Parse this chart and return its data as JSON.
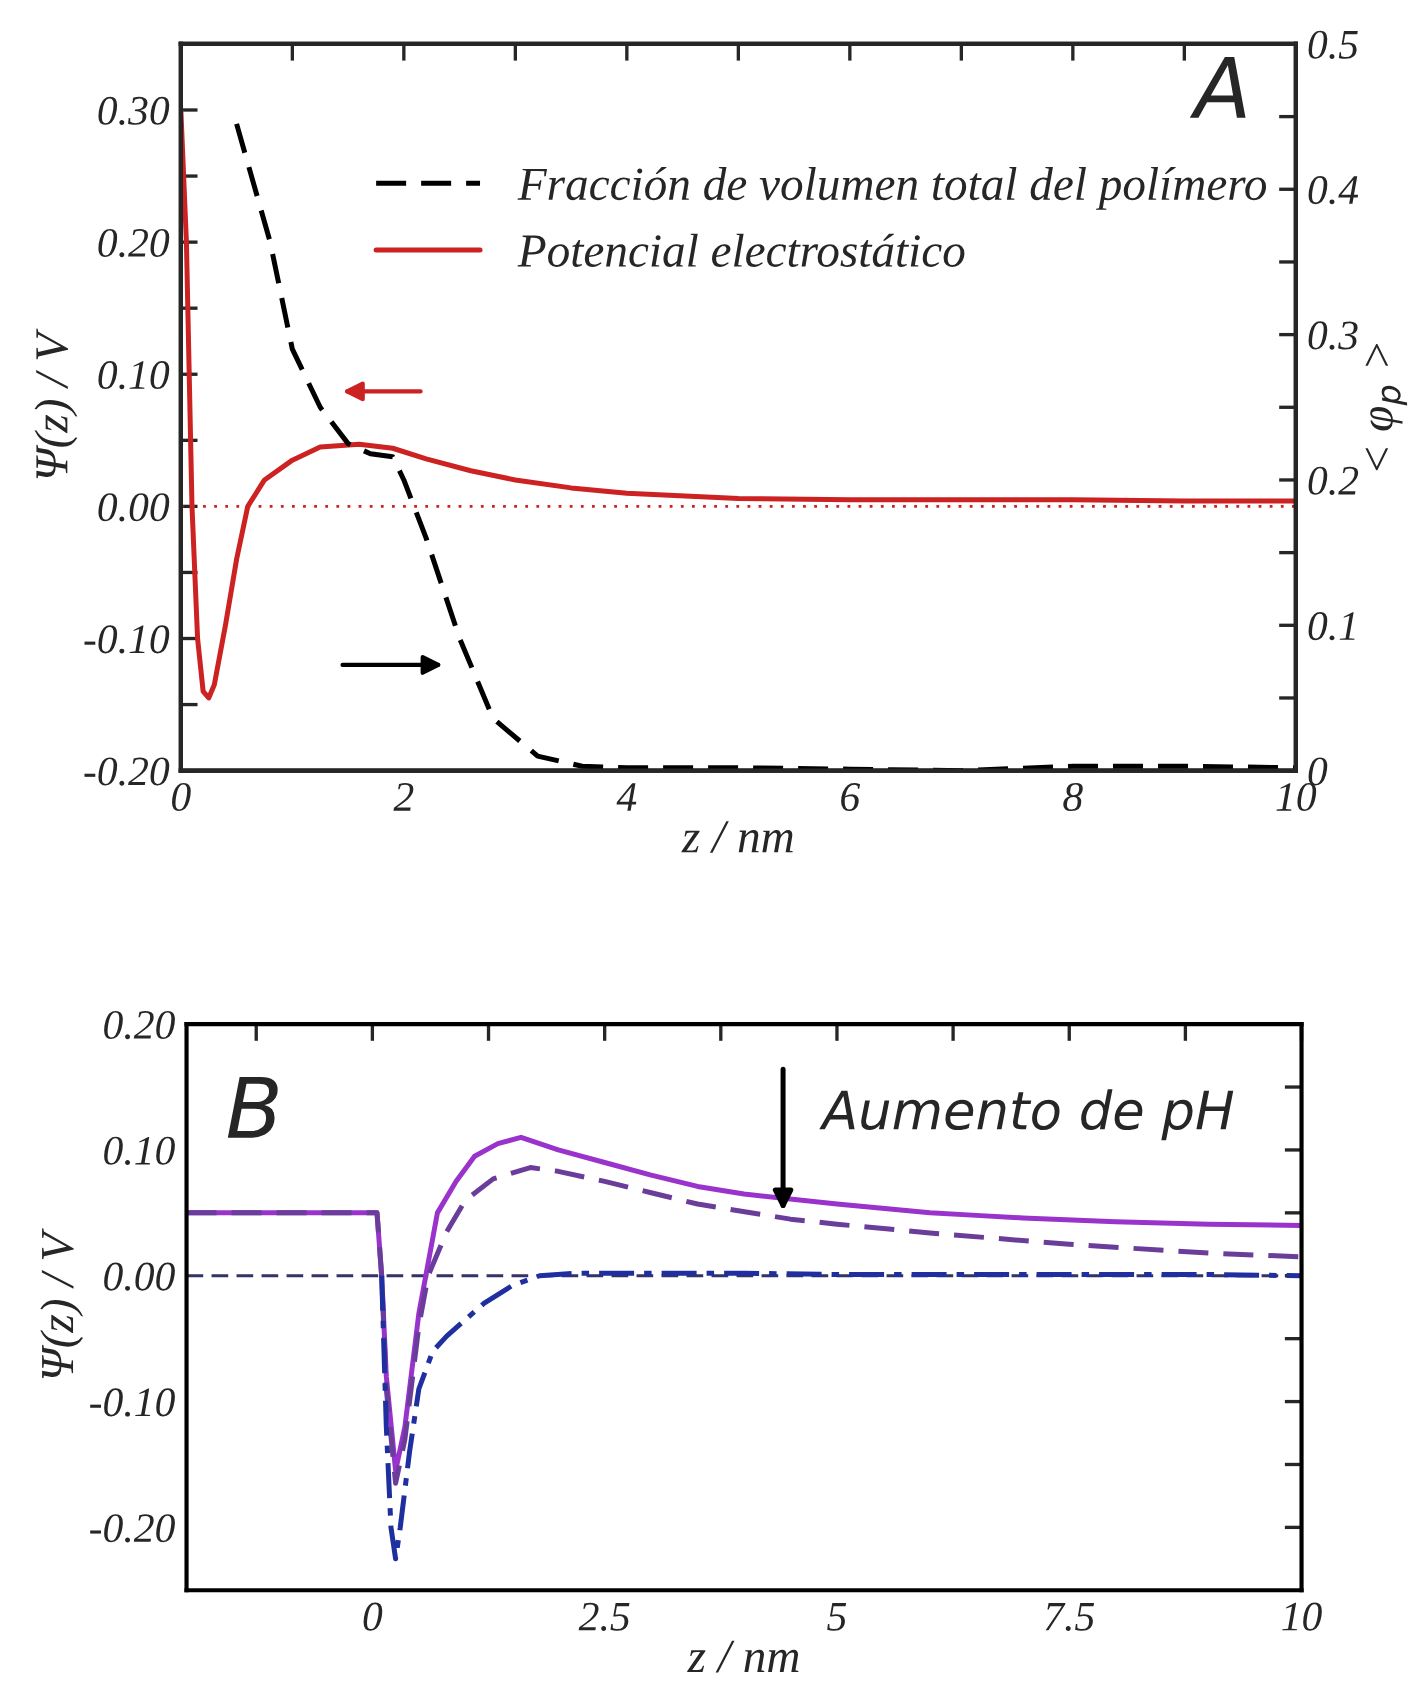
{
  "chart_data": [
    {
      "type": "line",
      "xlabel": "z / nm",
      "ylabel": "Ψ(z) / V",
      "y2label": "< φ$_{p}$ >",
      "xlim": [
        0,
        10
      ],
      "ylim": [
        -0.2,
        0.35
      ],
      "y2lim": [
        0,
        0.5
      ],
      "xticks": [
        0,
        {
          "value": 1,
          "label": null
        },
        2,
        {
          "value": 3,
          "label": null
        },
        4,
        {
          "value": 5,
          "label": null
        },
        6,
        {
          "value": 7,
          "label": null
        },
        8,
        {
          "value": 9,
          "label": null
        },
        10
      ],
      "yticks": [
        {
          "value": -0.2,
          "label": "-0.20"
        },
        {
          "value": -0.15,
          "label": null
        },
        {
          "value": -0.1,
          "label": "-0.10"
        },
        {
          "value": -0.05,
          "label": null
        },
        {
          "value": 0,
          "label": "0.00"
        },
        {
          "value": 0.05,
          "label": null
        },
        {
          "value": 0.1,
          "label": "0.10"
        },
        {
          "value": 0.15,
          "label": null
        },
        {
          "value": 0.2,
          "label": "0.20"
        },
        {
          "value": 0.25,
          "label": null
        },
        {
          "value": 0.3,
          "label": "0.30"
        }
      ],
      "y2ticks": [
        0,
        {
          "value": 0.05,
          "label": null
        },
        0.1,
        {
          "value": 0.15,
          "label": null
        },
        0.2,
        {
          "value": 0.25,
          "label": null
        },
        0.3,
        {
          "value": 0.35,
          "label": null
        },
        0.4,
        {
          "value": 0.45,
          "label": null
        },
        0.5
      ],
      "legend": "top right",
      "grid": false,
      "marker": "none",
      "series": [
        {
          "name": "Fracción de volumen total del polímero",
          "color": "#000000",
          "axis": "y2",
          "line_style": "dashed",
          "x": [
            0.5,
            0.8,
            1.0,
            1.25,
            1.5,
            1.7,
            1.9,
            2.0,
            2.2,
            2.5,
            2.8,
            3.2,
            3.6,
            4,
            5,
            6,
            7,
            8,
            9,
            10
          ],
          "values": [
            0.445,
            0.364,
            0.29,
            0.25,
            0.225,
            0.218,
            0.216,
            0.2,
            0.16,
            0.091,
            0.036,
            0.01,
            0.003,
            0.002,
            0.002,
            0.001,
            0.0,
            0.003,
            0.003,
            0.002
          ]
        },
        {
          "name": "Potencial electrostático",
          "color": "#cc2222",
          "line_style": "solid",
          "x": [
            0,
            0.05,
            0.1,
            0.15,
            0.2,
            0.25,
            0.3,
            0.4,
            0.5,
            0.6,
            0.75,
            1.0,
            1.25,
            1.6,
            1.9,
            2.2,
            2.6,
            3,
            3.5,
            4,
            5,
            6,
            7,
            8,
            9,
            10
          ],
          "values": [
            0.3,
            0.2,
            0.0,
            -0.1,
            -0.14,
            -0.145,
            -0.135,
            -0.09,
            -0.04,
            0.0,
            0.02,
            0.035,
            0.045,
            0.047,
            0.044,
            0.036,
            0.027,
            0.02,
            0.014,
            0.01,
            0.006,
            0.005,
            0.005,
            0.005,
            0.004,
            0.004
          ]
        }
      ],
      "ref_lines": [
        {
          "axis": "y",
          "value": 0,
          "color": "#cc2222",
          "line_style": "dotted"
        }
      ],
      "annotations": [
        "A"
      ]
    },
    {
      "type": "line",
      "xlabel": "z / nm",
      "ylabel": "Ψ(z) / V",
      "xlim": [
        -2,
        10
      ],
      "ylim": [
        -0.25,
        0.2
      ],
      "xticks": [
        {
          "value": -1.25,
          "label": null
        },
        0,
        {
          "value": 1.25,
          "label": null
        },
        2.5,
        {
          "value": 3.75,
          "label": null
        },
        5,
        {
          "value": 6.25,
          "label": null
        },
        7.5,
        {
          "value": 8.75,
          "label": null
        },
        10
      ],
      "yticks": [
        {
          "value": -0.2,
          "label": "-0.20"
        },
        {
          "value": -0.15,
          "label": null
        },
        {
          "value": -0.1,
          "label": "-0.10"
        },
        {
          "value": -0.05,
          "label": null
        },
        {
          "value": 0,
          "label": "0.00"
        },
        {
          "value": 0.05,
          "label": null
        },
        {
          "value": 0.1,
          "label": "0.10"
        },
        {
          "value": 0.15,
          "label": null
        },
        {
          "value": 0.2,
          "label": "0.20"
        }
      ],
      "grid": false,
      "marker": "none",
      "series": [
        {
          "color": "#9933cc",
          "line_style": "solid",
          "x": [
            -2,
            0.0,
            0.05,
            0.1,
            0.15,
            0.25,
            0.35,
            0.5,
            0.7,
            0.9,
            1.1,
            1.35,
            1.6,
            2.0,
            2.5,
            3.0,
            3.5,
            4,
            5,
            6,
            6.5,
            7,
            8,
            9,
            10
          ],
          "values": [
            0.05,
            0.05,
            0.05,
            0.0,
            -0.08,
            -0.155,
            -0.12,
            -0.03,
            0.05,
            0.075,
            0.095,
            0.105,
            0.11,
            0.1,
            0.09,
            0.08,
            0.071,
            0.065,
            0.057,
            0.05,
            0.048,
            0.046,
            0.043,
            0.041,
            0.04
          ]
        },
        {
          "color": "#6a3d9a",
          "line_style": "dashed",
          "x": [
            -2,
            0.0,
            0.05,
            0.1,
            0.15,
            0.25,
            0.35,
            0.5,
            0.6,
            0.8,
            1.0,
            1.3,
            1.7,
            2.0,
            2.5,
            3.0,
            3.5,
            4.5,
            5,
            6,
            7.5,
            9,
            10
          ],
          "values": [
            0.05,
            0.05,
            0.05,
            0.0,
            -0.09,
            -0.165,
            -0.13,
            -0.04,
            0.0,
            0.035,
            0.06,
            0.077,
            0.086,
            0.083,
            0.075,
            0.066,
            0.057,
            0.045,
            0.041,
            0.034,
            0.025,
            0.018,
            0.015
          ]
        },
        {
          "color": "#1f2fa0",
          "line_style": "dashdot",
          "x": [
            0.1,
            0.15,
            0.2,
            0.25,
            0.3,
            0.4,
            0.5,
            0.65,
            0.8,
            1.0,
            1.2,
            1.5,
            1.8,
            2.2,
            3,
            4,
            5,
            6,
            7,
            8,
            9,
            10
          ],
          "values": [
            0.0,
            -0.12,
            -0.2,
            -0.225,
            -0.2,
            -0.14,
            -0.09,
            -0.06,
            -0.048,
            -0.035,
            -0.022,
            -0.008,
            0.0,
            0.002,
            0.002,
            0.002,
            0.001,
            0.001,
            0.001,
            0.001,
            0.001,
            0.0
          ]
        }
      ],
      "ref_lines": [
        {
          "axis": "y",
          "value": 0,
          "color": "#333366",
          "line_style": "dashed"
        }
      ],
      "annotations": [
        "B",
        "Aumento de pH"
      ]
    }
  ]
}
